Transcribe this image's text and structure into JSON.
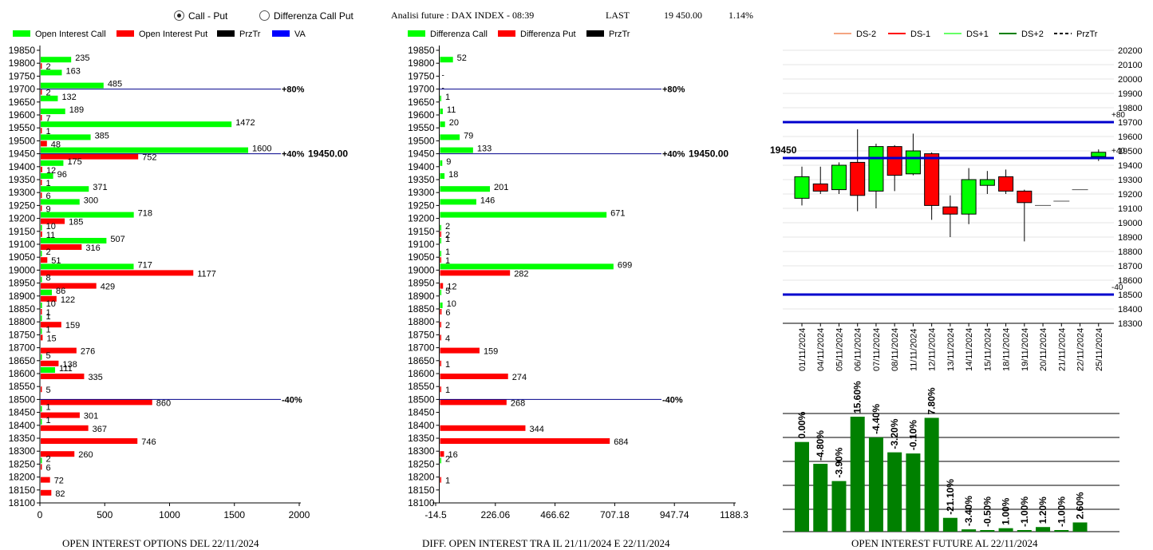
{
  "header": {
    "radio_call_put": "Call - Put",
    "radio_diff": "Differenza Call Put",
    "analysis_title": "Analisi future : DAX INDEX - 08:39",
    "last_label": "LAST",
    "last_value": "19 450.00",
    "last_change": "1.14%"
  },
  "captions": {
    "left": "OPEN INTEREST OPTIONS DEL 22/11/2024",
    "middle": "DIFF. OPEN INTEREST TRA IL 21/11/2024 E 22/11/2024",
    "right": "OPEN INTEREST FUTURE AL 22/11/2024"
  },
  "colors": {
    "call": "#00ff00",
    "put": "#ff0000",
    "prztr": "#000000",
    "va": "#0000ff",
    "bar_future": "#008000"
  },
  "chart_data": [
    {
      "type": "bar",
      "orientation": "horizontal",
      "legend": [
        "Open Interest Call",
        "Open Interest Put",
        "PrzTr",
        "VA"
      ],
      "strikes": [
        19850,
        19800,
        19750,
        19700,
        19650,
        19600,
        19550,
        19500,
        19450,
        19400,
        19350,
        19300,
        19250,
        19200,
        19150,
        19100,
        19050,
        19000,
        18950,
        18900,
        18850,
        18800,
        18750,
        18700,
        18650,
        18600,
        18550,
        18500,
        18450,
        18400,
        18350,
        18300,
        18250,
        18200,
        18150,
        18100
      ],
      "series": [
        {
          "name": "Open Interest Call",
          "values": [
            null,
            235,
            163,
            485,
            132,
            189,
            1472,
            385,
            1600,
            175,
            96,
            371,
            300,
            718,
            10,
            507,
            2,
            717,
            8,
            86,
            10,
            1,
            1,
            null,
            5,
            111,
            null,
            null,
            1,
            1,
            null,
            null,
            2,
            null,
            null,
            null
          ]
        },
        {
          "name": "Open Interest Put",
          "values": [
            null,
            2,
            null,
            2,
            null,
            7,
            1,
            48,
            752,
            12,
            1,
            6,
            9,
            185,
            11,
            316,
            51,
            1177,
            429,
            122,
            1,
            159,
            15,
            276,
            138,
            335,
            5,
            860,
            301,
            367,
            746,
            260,
            6,
            72,
            82,
            null
          ]
        }
      ],
      "x_ticks": [
        "0",
        "500",
        "1000",
        "1500",
        "2000"
      ],
      "xlim": [
        0,
        2000
      ],
      "lines": [
        {
          "label": "+80%",
          "strike": 19700
        },
        {
          "label": "+40%",
          "strike": 19450
        },
        {
          "label": "-40%",
          "strike": 18500
        }
      ],
      "przTr_label": "19450.00"
    },
    {
      "type": "bar",
      "orientation": "horizontal",
      "legend": [
        "Differenza Call",
        "Differenza Put",
        "PrzTr"
      ],
      "strikes": [
        19850,
        19800,
        19750,
        19700,
        19650,
        19600,
        19550,
        19500,
        19450,
        19400,
        19350,
        19300,
        19250,
        19200,
        19150,
        19100,
        19050,
        19000,
        18950,
        18900,
        18850,
        18800,
        18750,
        18700,
        18650,
        18600,
        18550,
        18500,
        18450,
        18400,
        18350,
        18300,
        18250,
        18200,
        18150,
        18100
      ],
      "series": [
        {
          "name": "Differenza Call",
          "values": [
            null,
            52,
            null,
            null,
            1,
            11,
            20,
            79,
            133,
            9,
            18,
            201,
            146,
            671,
            2,
            1,
            1,
            699,
            null,
            5,
            10,
            null,
            null,
            null,
            null,
            null,
            null,
            null,
            null,
            null,
            null,
            null,
            2,
            null,
            null,
            null
          ]
        },
        {
          "name": "Differenza Put",
          "values": [
            null,
            null,
            null,
            null,
            null,
            null,
            null,
            null,
            null,
            null,
            null,
            null,
            null,
            null,
            2,
            null,
            1,
            282,
            12,
            null,
            6,
            2,
            4,
            159,
            1,
            274,
            1,
            268,
            null,
            344,
            684,
            16,
            null,
            1,
            null,
            null
          ]
        }
      ],
      "small_labels": {
        "19750": "-",
        "19700": "-"
      },
      "x_ticks": [
        "-14.5",
        "226.06",
        "466.62",
        "707.18",
        "947.74",
        "1188.3"
      ],
      "xlim": [
        -14.5,
        1188.3
      ],
      "lines": [
        {
          "label": "+80%",
          "strike": 19700
        },
        {
          "label": "+40%",
          "strike": 19450
        },
        {
          "label": "-40%",
          "strike": 18500
        }
      ],
      "przTr_label": "19450.00"
    },
    {
      "type": "candlestick",
      "legend": [
        "DS-2",
        "DS-1",
        "DS+1",
        "DS+2",
        "PrzTr"
      ],
      "dates": [
        "01/11/2024",
        "04/11/2024",
        "05/11/2024",
        "06/11/2024",
        "07/11/2024",
        "08/11/2024",
        "11/11/2024",
        "12/11/2024",
        "13/11/2024",
        "14/11/2024",
        "15/11/2024",
        "18/11/2024",
        "19/11/2024",
        "20/11/2024",
        "21/11/2024",
        "22/11/2024",
        "25/11/2024"
      ],
      "ohlc": [
        [
          19170,
          19390,
          19120,
          19320
        ],
        [
          19270,
          19390,
          19200,
          19220
        ],
        [
          19230,
          19420,
          19200,
          19400
        ],
        [
          19420,
          19650,
          19080,
          19190
        ],
        [
          19220,
          19550,
          19100,
          19530
        ],
        [
          19530,
          19540,
          19220,
          19330
        ],
        [
          19340,
          19620,
          19330,
          19500
        ],
        [
          19480,
          19490,
          19020,
          19120
        ],
        [
          19110,
          19190,
          18900,
          19060
        ],
        [
          19060,
          19380,
          18990,
          19300
        ],
        [
          19260,
          19360,
          19200,
          19300
        ],
        [
          19320,
          19370,
          19200,
          19220
        ],
        [
          19220,
          19230,
          18870,
          19140
        ],
        [
          19120,
          19120,
          19120,
          19120
        ],
        [
          19150,
          19150,
          19150,
          19150
        ],
        [
          19230,
          19230,
          19230,
          19230
        ],
        [
          19460,
          19510,
          19430,
          19490
        ]
      ],
      "y_ticks": [
        20200,
        20100,
        20000,
        19900,
        19800,
        19700,
        19600,
        19500,
        19400,
        19300,
        19200,
        19100,
        19000,
        18900,
        18800,
        18700,
        18600,
        18500,
        18400,
        18300
      ],
      "ylim": [
        18300,
        20200
      ],
      "lines": [
        {
          "label": "+80",
          "value": 19700
        },
        {
          "label": "+40",
          "value": 19450
        },
        {
          "label": "-40",
          "value": 18500
        }
      ],
      "przTr_label": "19450"
    },
    {
      "type": "bar",
      "dates": [
        "01/11/2024",
        "04/11/2024",
        "05/11/2024",
        "06/11/2024",
        "07/11/2024",
        "08/11/2024",
        "11/11/2024",
        "12/11/2024",
        "13/11/2024",
        "14/11/2024",
        "15/11/2024",
        "18/11/2024",
        "19/11/2024",
        "20/11/2024",
        "21/11/2024",
        "22/11/2024",
        "25/11/2024"
      ],
      "values": [
        0.0,
        -4.8,
        -3.9,
        15.6,
        -4.4,
        -3.2,
        -0.1,
        7.8,
        -21.1,
        -3.4,
        -0.5,
        1.0,
        -1.0,
        1.2,
        -1.0,
        2.6,
        null
      ],
      "value_labels": [
        "0.00%",
        "-4.80%",
        "-3.90%",
        "15.60%",
        "-4.40%",
        "-3.20%",
        "-0.10%",
        "7.80%",
        "-21.10%",
        "-3.40%",
        "-0.50%",
        "1.00%",
        "-1.00%",
        "1.20%",
        "-1.00%",
        "2.60%",
        ""
      ],
      "heights_relative": [
        0.78,
        0.59,
        0.44,
        1.0,
        0.82,
        0.69,
        0.68,
        0.99,
        0.12,
        0.02,
        0.0,
        0.03,
        0.0,
        0.04,
        0.01,
        0.08,
        null
      ]
    }
  ]
}
